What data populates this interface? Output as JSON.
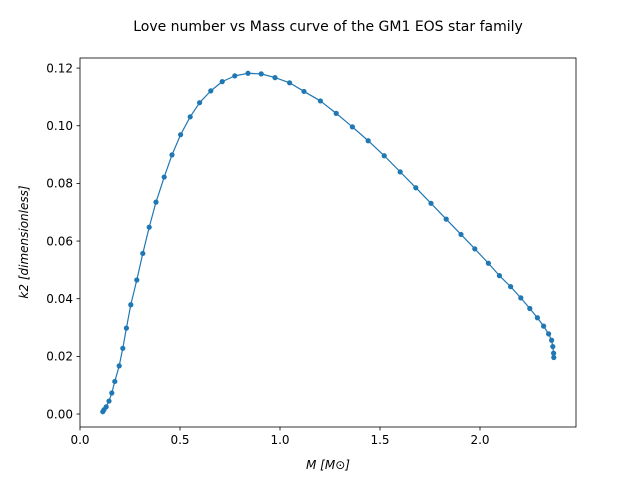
{
  "chart_data": {
    "type": "line",
    "title": "Love number vs Mass curve of the GM1 EOS star family",
    "xlabel": "M [M⊙]",
    "ylabel": "k2 [dimensionless]",
    "xlim": [
      0.0,
      2.48
    ],
    "ylim": [
      -0.0045,
      0.1235
    ],
    "xticks": [
      0.0,
      0.5,
      1.0,
      1.5,
      2.0
    ],
    "xtick_labels": [
      "0.0",
      "0.5",
      "1.0",
      "1.5",
      "2.0"
    ],
    "yticks": [
      0.0,
      0.02,
      0.04,
      0.06,
      0.08,
      0.1,
      0.12
    ],
    "ytick_labels": [
      "0.00",
      "0.02",
      "0.04",
      "0.06",
      "0.08",
      "0.10",
      "0.12"
    ],
    "grid": false,
    "legend": "none",
    "series": [
      {
        "color": "#1f77b4",
        "marker": "circle",
        "x": [
          0.114,
          0.12,
          0.131,
          0.145,
          0.159,
          0.174,
          0.196,
          0.214,
          0.232,
          0.254,
          0.284,
          0.314,
          0.346,
          0.38,
          0.421,
          0.46,
          0.503,
          0.551,
          0.598,
          0.654,
          0.711,
          0.774,
          0.84,
          0.906,
          0.975,
          1.048,
          1.12,
          1.202,
          1.281,
          1.362,
          1.441,
          1.521,
          1.601,
          1.679,
          1.755,
          1.831,
          1.905,
          1.974,
          2.042,
          2.097,
          2.153,
          2.204,
          2.249,
          2.287,
          2.318,
          2.343,
          2.358,
          2.364,
          2.368,
          2.369
        ],
        "y": [
          0.0008,
          0.0015,
          0.0025,
          0.0045,
          0.0073,
          0.0113,
          0.0167,
          0.0228,
          0.0298,
          0.0379,
          0.0465,
          0.0557,
          0.0648,
          0.0735,
          0.0822,
          0.0899,
          0.0969,
          0.1031,
          0.108,
          0.1121,
          0.1153,
          0.1173,
          0.1182,
          0.118,
          0.1167,
          0.1149,
          0.1119,
          0.1086,
          0.1043,
          0.0996,
          0.0948,
          0.0896,
          0.084,
          0.0785,
          0.0731,
          0.0676,
          0.0623,
          0.0573,
          0.0523,
          0.048,
          0.0442,
          0.0403,
          0.0366,
          0.0334,
          0.0305,
          0.0278,
          0.0256,
          0.0234,
          0.0211,
          0.0196
        ]
      }
    ]
  }
}
